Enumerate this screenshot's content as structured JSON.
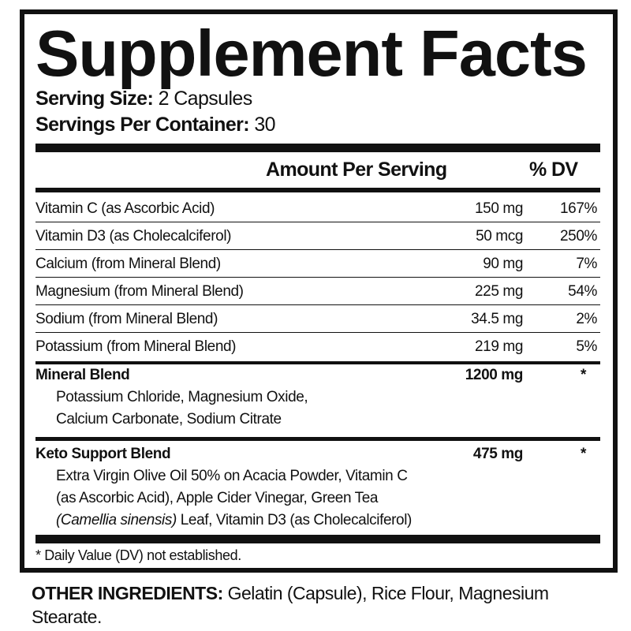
{
  "title": "Supplement Facts",
  "serving_size": {
    "label": "Serving Size:",
    "value": "2 Capsules"
  },
  "servings_per_container": {
    "label": "Servings Per Container:",
    "value": "30"
  },
  "header": {
    "amount": "Amount Per Serving",
    "dv": "% DV"
  },
  "rows": [
    {
      "name": "Vitamin C (as Ascorbic Acid)",
      "amount": "150 mg",
      "dv": "167%"
    },
    {
      "name": "Vitamin D3 (as Cholecalciferol)",
      "amount": "50 mcg",
      "dv": "250%"
    },
    {
      "name": "Calcium (from Mineral Blend)",
      "amount": "90 mg",
      "dv": "7%"
    },
    {
      "name": "Magnesium (from Mineral Blend)",
      "amount": "225 mg",
      "dv": "54%"
    },
    {
      "name": "Sodium (from Mineral Blend)",
      "amount": "34.5 mg",
      "dv": "2%"
    },
    {
      "name": "Potassium (from Mineral Blend)",
      "amount": "219 mg",
      "dv": "5%"
    }
  ],
  "mineral_blend": {
    "name": "Mineral Blend",
    "amount": "1200 mg",
    "dv": "*",
    "lines": [
      "Potassium Chloride, Magnesium Oxide,",
      "Calcium Carbonate, Sodium Citrate"
    ]
  },
  "keto_blend": {
    "name": "Keto Support Blend",
    "amount": "475 mg",
    "dv": "*",
    "lines": [
      "Extra Virgin Olive Oil 50% on Acacia Powder, Vitamin C",
      "(as Ascorbic Acid), Apple Cider Vinegar, Green Tea"
    ],
    "italic": "(Camellia sinensis)",
    "last": " Leaf, Vitamin D3 (as Cholecalciferol)"
  },
  "footnote": "* Daily Value (DV) not established.",
  "other_ingredients": {
    "label": "OTHER INGREDIENTS:",
    "value": " Gelatin (Capsule), Rice Flour, Magnesium Stearate."
  }
}
